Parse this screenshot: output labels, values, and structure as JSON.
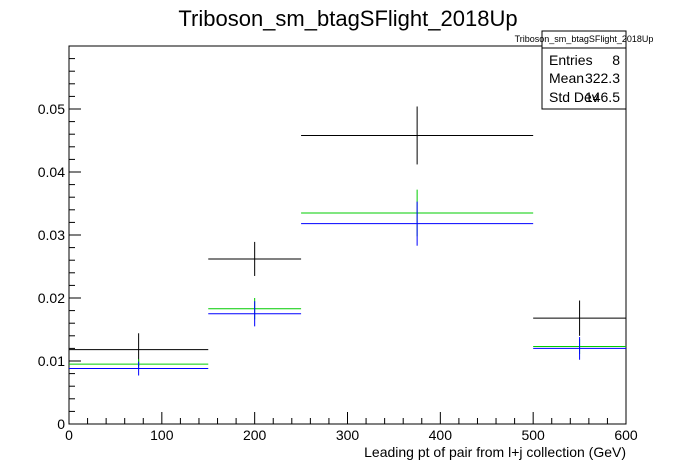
{
  "chart_data": {
    "type": "scatter",
    "title": "Triboson_sm_btagSFlight_2018Up",
    "xlabel": "Leading pt of pair from l+j collection (GeV)",
    "ylabel": "",
    "xlim": [
      0,
      600
    ],
    "ylim": [
      0,
      0.06
    ],
    "x_ticks": [
      0,
      100,
      200,
      300,
      400,
      500,
      600
    ],
    "x_tick_labels": [
      "0",
      "100",
      "200",
      "300",
      "400",
      "500",
      "600"
    ],
    "y_ticks": [
      0,
      0.01,
      0.02,
      0.03,
      0.04,
      0.05
    ],
    "y_tick_labels": [
      "0",
      "0.01",
      "0.02",
      "0.03",
      "0.04",
      "0.05"
    ],
    "grid": false,
    "bins": [
      {
        "low": 0,
        "high": 150,
        "center": 75
      },
      {
        "low": 150,
        "high": 250,
        "center": 200
      },
      {
        "low": 250,
        "high": 500,
        "center": 375
      },
      {
        "low": 500,
        "high": 600,
        "center": 550
      }
    ],
    "series": [
      {
        "color": "#000000",
        "values": [
          0.0118,
          0.0262,
          0.0458,
          0.0168
        ],
        "errors": [
          0.0026,
          0.0027,
          0.0046,
          0.0028
        ]
      },
      {
        "color": "#00cc00",
        "values": [
          0.0095,
          0.0183,
          0.0335,
          0.0123
        ],
        "errors": [
          0.0008,
          0.0017,
          0.0037,
          0.0012
        ]
      },
      {
        "color": "#0000ff",
        "values": [
          0.0088,
          0.0175,
          0.0318,
          0.012
        ],
        "errors": [
          0.0011,
          0.002,
          0.0035,
          0.0018
        ]
      }
    ],
    "stats": {
      "name": "Triboson_sm_btagSFlight_2018Up",
      "rows": [
        {
          "label": "Entries",
          "value": "8"
        },
        {
          "label": "Mean",
          "value": "322.3"
        },
        {
          "label": "Std Dev",
          "value": "146.5"
        }
      ]
    }
  }
}
